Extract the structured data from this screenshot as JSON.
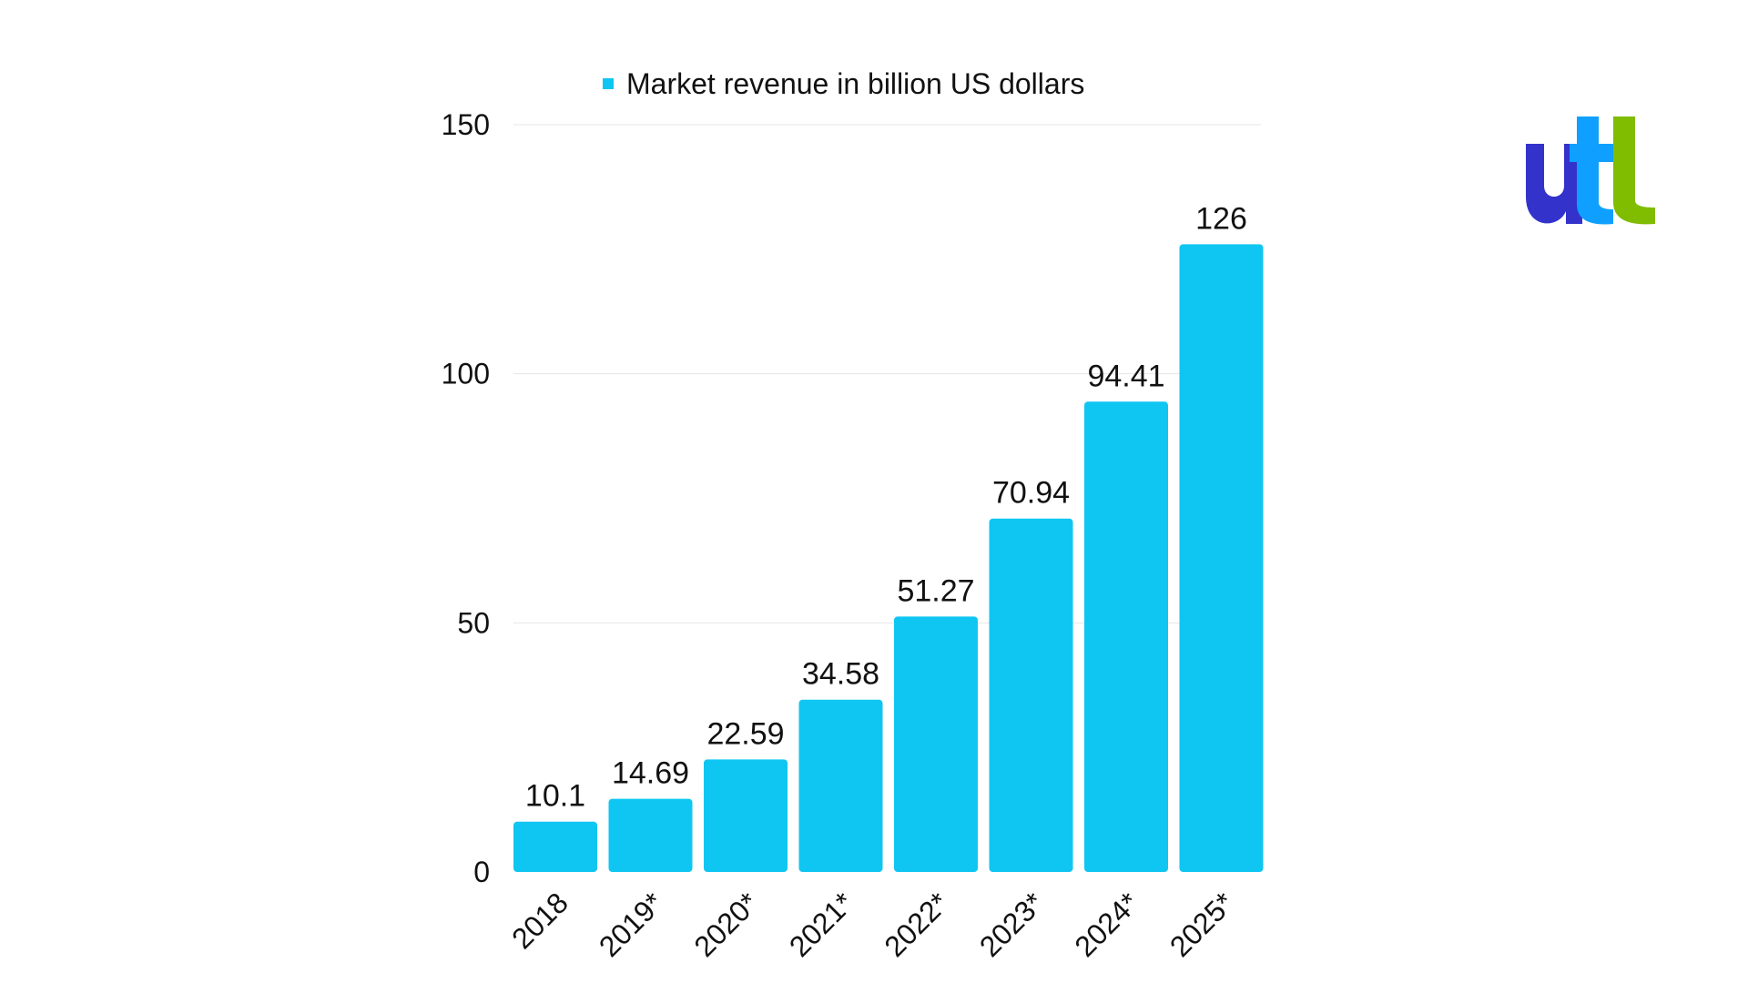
{
  "chart_data": {
    "type": "bar",
    "categories": [
      "2018",
      "2019*",
      "2020*",
      "2021*",
      "2022*",
      "2023*",
      "2024*",
      "2025*"
    ],
    "series": [
      {
        "name": "Market revenue in billion US dollars",
        "values": [
          10.1,
          14.69,
          22.59,
          34.58,
          51.27,
          70.94,
          94.41,
          126
        ],
        "labels": [
          "10.1",
          "14.69",
          "22.59",
          "34.58",
          "51.27",
          "70.94",
          "94.41",
          "126"
        ]
      }
    ],
    "y_ticks": [
      0,
      50,
      100,
      150
    ],
    "ylim": [
      0,
      150
    ],
    "grid": true,
    "legend_position": "top-center",
    "bar_color": "#0fc6f2",
    "gridline_color": "#e6e6e6"
  },
  "logo": {
    "icon": "utl-logo",
    "text": "utl",
    "colors": [
      "#3333cc",
      "#0fa0ff",
      "#80bc00"
    ]
  }
}
